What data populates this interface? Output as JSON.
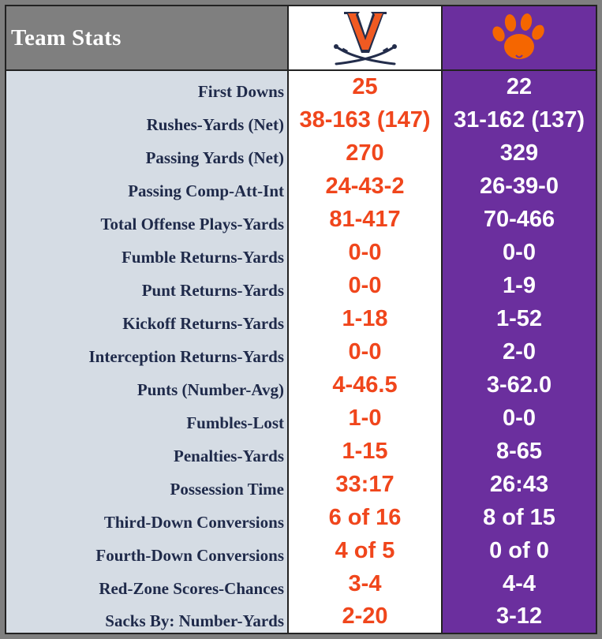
{
  "header": {
    "title": "Team Stats",
    "team1_logo": "virginia-v-sabres-logo",
    "team2_logo": "clemson-paw-logo"
  },
  "colors": {
    "team1_value": "#f0461c",
    "team2_bg": "#6b2f9e",
    "label_bg": "#d5dce4",
    "label_text": "#1f2a4a",
    "header_bg": "#7f7f7f"
  },
  "rows": [
    {
      "label": "First Downs",
      "team1": "25",
      "team2": "22"
    },
    {
      "label": "Rushes-Yards (Net)",
      "team1": "38-163 (147)",
      "team2": "31-162 (137)"
    },
    {
      "label": "Passing Yards (Net)",
      "team1": "270",
      "team2": "329"
    },
    {
      "label": "Passing Comp-Att-Int",
      "team1": "24-43-2",
      "team2": "26-39-0"
    },
    {
      "label": "Total Offense Plays-Yards",
      "team1": "81-417",
      "team2": "70-466"
    },
    {
      "label": "Fumble Returns-Yards",
      "team1": "0-0",
      "team2": "0-0"
    },
    {
      "label": "Punt Returns-Yards",
      "team1": "0-0",
      "team2": "1-9"
    },
    {
      "label": "Kickoff Returns-Yards",
      "team1": "1-18",
      "team2": "1-52"
    },
    {
      "label": "Interception Returns-Yards",
      "team1": "0-0",
      "team2": "2-0"
    },
    {
      "label": "Punts (Number-Avg)",
      "team1": "4-46.5",
      "team2": "3-62.0"
    },
    {
      "label": "Fumbles-Lost",
      "team1": "1-0",
      "team2": "0-0"
    },
    {
      "label": "Penalties-Yards",
      "team1": "1-15",
      "team2": "8-65"
    },
    {
      "label": "Possession Time",
      "team1": "33:17",
      "team2": "26:43"
    },
    {
      "label": "Third-Down Conversions",
      "team1": "6 of 16",
      "team2": "8 of 15"
    },
    {
      "label": "Fourth-Down Conversions",
      "team1": "4 of 5",
      "team2": "0 of 0"
    },
    {
      "label": "Red-Zone Scores-Chances",
      "team1": "3-4",
      "team2": "4-4"
    },
    {
      "label": "Sacks By: Number-Yards",
      "team1": "2-20",
      "team2": "3-12"
    }
  ]
}
